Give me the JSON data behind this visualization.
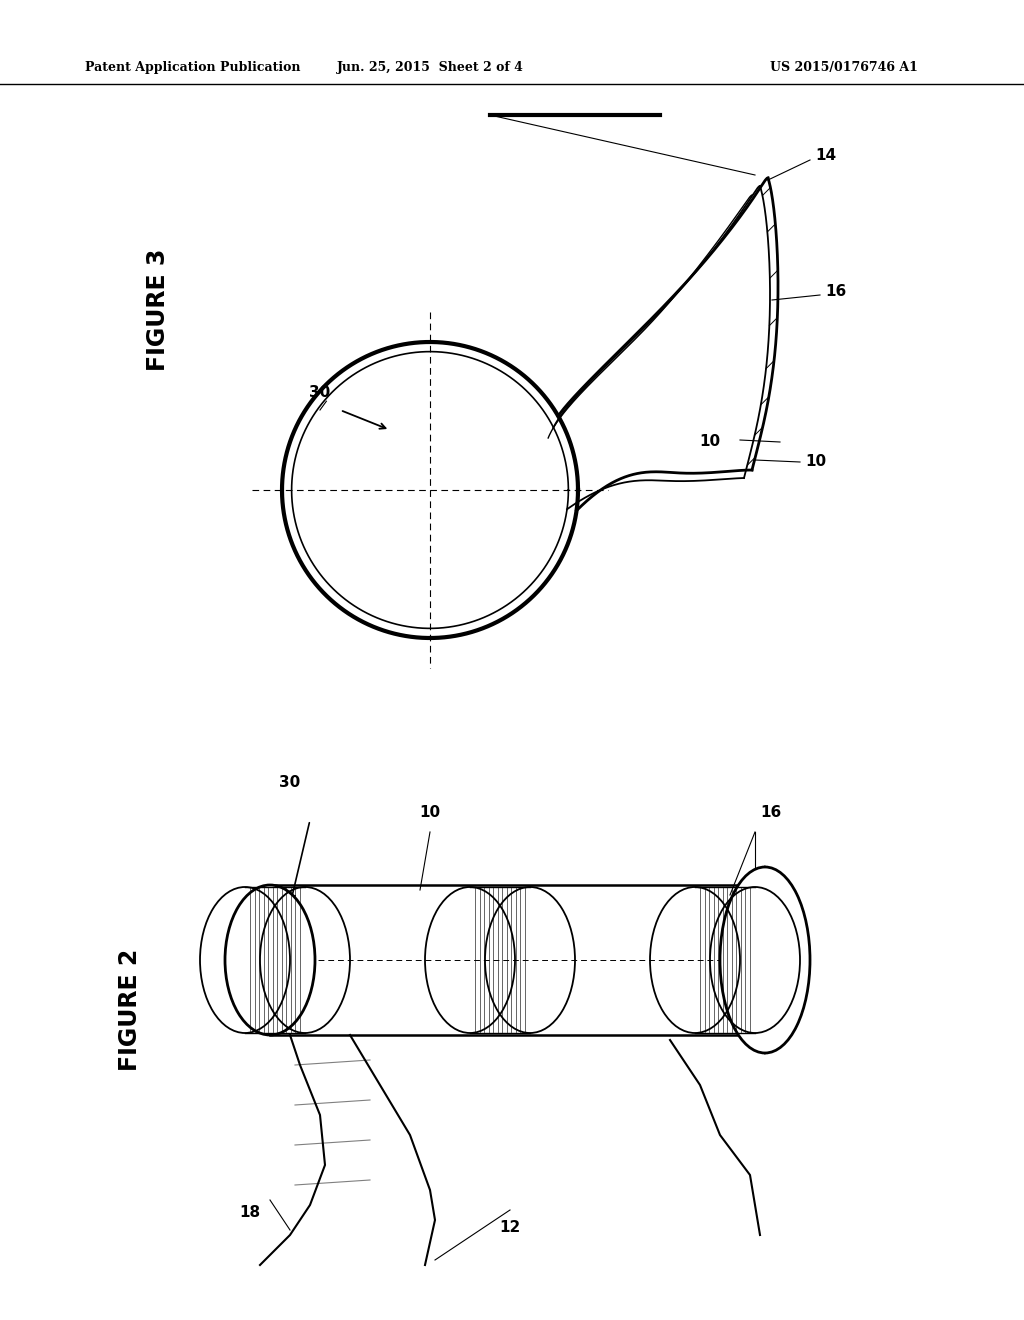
{
  "background_color": "#ffffff",
  "header_text1": "Patent Application Publication",
  "header_text2": "Jun. 25, 2015  Sheet 2 of 4",
  "header_text3": "US 2015/0176746 A1",
  "fig3_label": "FIGURE 3",
  "fig2_label": "FIGURE 2"
}
